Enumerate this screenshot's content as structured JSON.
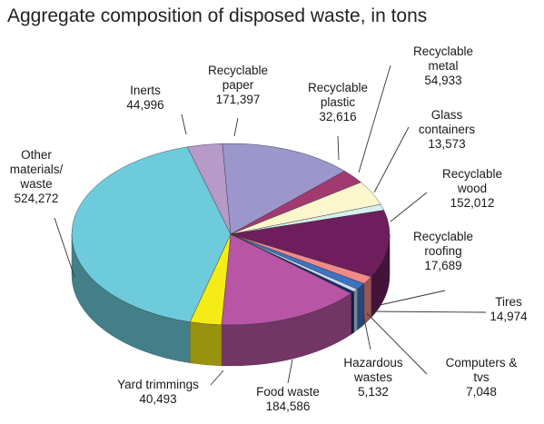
{
  "chart_data": {
    "type": "pie",
    "title": "Aggregate composition of disposed waste, in tons",
    "style": "3d",
    "slices": [
      {
        "name": "Recyclable paper",
        "label_lines": [
          "Recyclable",
          "paper"
        ],
        "value_label": "171,397",
        "value": 171397,
        "color": "#9b97cc"
      },
      {
        "name": "Recyclable plastic",
        "label_lines": [
          "Recyclable",
          "plastic"
        ],
        "value_label": "32,616",
        "value": 32616,
        "color": "#a23a72"
      },
      {
        "name": "Recyclable metal",
        "label_lines": [
          "Recyclable",
          "metal"
        ],
        "value_label": "54,933",
        "value": 54933,
        "color": "#fbf6cc"
      },
      {
        "name": "Glass containers",
        "label_lines": [
          "Glass",
          "containers"
        ],
        "value_label": "13,573",
        "value": 13573,
        "color": "#d6efef"
      },
      {
        "name": "Recyclable wood",
        "label_lines": [
          "Recyclable",
          "wood"
        ],
        "value_label": "152,012",
        "value": 152012,
        "color": "#6e1e5c"
      },
      {
        "name": "Recyclable roofing",
        "label_lines": [
          "Recyclable",
          "roofing"
        ],
        "value_label": "17,689",
        "value": 17689,
        "color": "#f28a8a"
      },
      {
        "name": "Tires",
        "label_lines": [
          "Tires"
        ],
        "value_label": "14,974",
        "value": 14974,
        "color": "#3e72c2"
      },
      {
        "name": "Computers & tvs",
        "label_lines": [
          "Computers &",
          "tvs"
        ],
        "value_label": "7,048",
        "value": 7048,
        "color": "#c7dcef"
      },
      {
        "name": "Hazardous wastes",
        "label_lines": [
          "Hazardous",
          "wastes"
        ],
        "value_label": "5,132",
        "value": 5132,
        "color": "#1f2a6e"
      },
      {
        "name": "Food waste",
        "label_lines": [
          "Food waste"
        ],
        "value_label": "184,586",
        "value": 184586,
        "color": "#b855a4"
      },
      {
        "name": "Yard trimmings",
        "label_lines": [
          "Yard trimmings"
        ],
        "value_label": "40,493",
        "value": 40493,
        "color": "#f5ec17"
      },
      {
        "name": "Other materials/ waste",
        "label_lines": [
          "Other",
          "materials/",
          "waste"
        ],
        "value_label": "524,272",
        "value": 524272,
        "color": "#6dcbdc"
      },
      {
        "name": "Inerts",
        "label_lines": [
          "Inerts"
        ],
        "value_label": "44,996",
        "value": 44996,
        "color": "#b79ac8"
      }
    ]
  }
}
